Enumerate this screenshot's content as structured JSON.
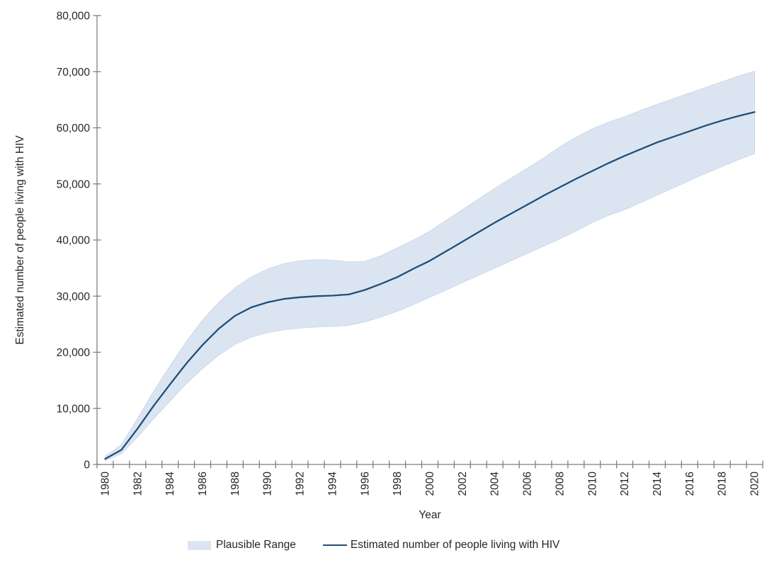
{
  "chart_data": {
    "type": "line",
    "title": "",
    "xlabel": "Year",
    "ylabel": "Estimated number of people living with HIV",
    "ylim": [
      0,
      80000
    ],
    "ytick_interval": 10000,
    "ytick_labels": [
      "0",
      "10,000",
      "20,000",
      "30,000",
      "40,000",
      "50,000",
      "60,000",
      "70,000",
      "80,000"
    ],
    "xtick_labels": [
      "1980",
      "1982",
      "1984",
      "1986",
      "1988",
      "1990",
      "1992",
      "1994",
      "1996",
      "1998",
      "2000",
      "2002",
      "2004",
      "2006",
      "2008",
      "2010",
      "2012",
      "2014",
      "2016",
      "2018",
      "2020"
    ],
    "grid": false,
    "legend_position": "bottom",
    "x": [
      1980,
      1981,
      1982,
      1983,
      1984,
      1985,
      1986,
      1987,
      1988,
      1989,
      1990,
      1991,
      1992,
      1993,
      1994,
      1995,
      1996,
      1997,
      1998,
      1999,
      2000,
      2001,
      2002,
      2003,
      2004,
      2005,
      2006,
      2007,
      2008,
      2009,
      2010,
      2011,
      2012,
      2013,
      2014,
      2015,
      2016,
      2017,
      2018,
      2019,
      2020
    ],
    "series": [
      {
        "name": "Estimated number of people living with HIV",
        "color": "#1f4e79",
        "values": [
          1000,
          2600,
          6400,
          10500,
          14300,
          18000,
          21300,
          24200,
          26500,
          28000,
          28900,
          29500,
          29800,
          30000,
          30100,
          30300,
          31100,
          32200,
          33400,
          34900,
          36300,
          38000,
          39700,
          41400,
          43100,
          44700,
          46300,
          47900,
          49400,
          50900,
          52300,
          53700,
          55000,
          56200,
          57400,
          58400,
          59400,
          60400,
          61300,
          62100,
          62800
        ]
      }
    ],
    "band": {
      "name": "Plausible Range",
      "color": "#dbe5f1",
      "lower": [
        700,
        1900,
        4900,
        8200,
        11300,
        14400,
        17100,
        19500,
        21400,
        22700,
        23500,
        24000,
        24300,
        24500,
        24600,
        24800,
        25400,
        26300,
        27300,
        28500,
        29800,
        31100,
        32400,
        33700,
        35000,
        36300,
        37600,
        38900,
        40200,
        41600,
        43100,
        44400,
        45400,
        46700,
        48000,
        49300,
        50600,
        51900,
        53100,
        54300,
        55400
      ],
      "upper": [
        1500,
        3500,
        8200,
        13100,
        17600,
        21900,
        25700,
        28900,
        31500,
        33400,
        34800,
        35800,
        36300,
        36500,
        36400,
        36100,
        36200,
        37200,
        38600,
        40000,
        41600,
        43500,
        45400,
        47300,
        49200,
        51000,
        52800,
        54600,
        56600,
        58300,
        59800,
        61000,
        62000,
        63100,
        64200,
        65200,
        66200,
        67200,
        68200,
        69200,
        70100
      ]
    }
  },
  "axes": {
    "x_title": "Year",
    "y_title": "Estimated number of people living with HIV"
  },
  "legend": {
    "band_label": "Plausible Range",
    "line_label": "Estimated number of people living with HIV"
  },
  "colors": {
    "line": "#1f4e79",
    "band_fill": "#dbe5f1",
    "band_edge": "#cdd9eb",
    "axis": "#7f7f7f",
    "text": "#262626"
  }
}
